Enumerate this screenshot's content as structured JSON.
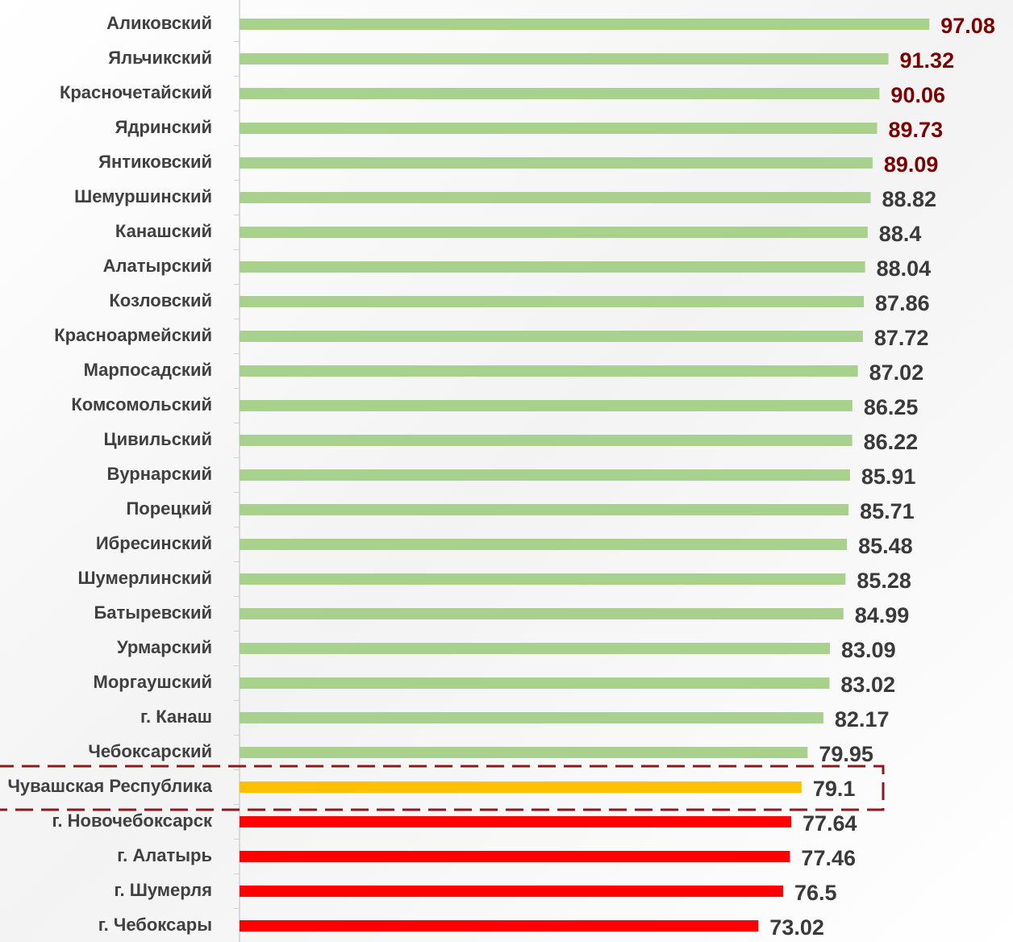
{
  "chart_data": {
    "type": "bar",
    "orientation": "horizontal",
    "categories": [
      "Аликовский",
      "Яльчикский",
      "Красночетайский",
      "Ядринский",
      "Янтиковский",
      "Шемуршинский",
      "Канашский",
      "Алатырский",
      "Козловский",
      "Красноармейский",
      "Марпосадский",
      "Комсомольский",
      "Цивильский",
      "Вурнарский",
      "Порецкий",
      "Ибресинский",
      "Шумерлинский",
      "Батыревский",
      "Урмарский",
      "Моргаушский",
      "г. Канаш",
      "Чебоксарский",
      "Чувашская Республика",
      "г. Новочебоксарск",
      "г. Алатырь",
      "г. Шумерля",
      "г. Чебоксары"
    ],
    "values": [
      97.08,
      91.32,
      90.06,
      89.73,
      89.09,
      88.82,
      88.4,
      88.04,
      87.86,
      87.72,
      87.02,
      86.25,
      86.22,
      85.91,
      85.71,
      85.48,
      85.28,
      84.99,
      83.09,
      83.02,
      82.17,
      79.95,
      79.1,
      77.64,
      77.46,
      76.5,
      73.02
    ],
    "colors": [
      "#a9d18e",
      "#a9d18e",
      "#a9d18e",
      "#a9d18e",
      "#a9d18e",
      "#a9d18e",
      "#a9d18e",
      "#a9d18e",
      "#a9d18e",
      "#a9d18e",
      "#a9d18e",
      "#a9d18e",
      "#a9d18e",
      "#a9d18e",
      "#a9d18e",
      "#a9d18e",
      "#a9d18e",
      "#a9d18e",
      "#a9d18e",
      "#a9d18e",
      "#a9d18e",
      "#a9d18e",
      "#ffc000",
      "#ff0000",
      "#ff0000",
      "#ff0000",
      "#ff0000"
    ],
    "label_colors": [
      "#7b0000",
      "#7b0000",
      "#7b0000",
      "#7b0000",
      "#7b0000",
      "#3a3a3a",
      "#3a3a3a",
      "#3a3a3a",
      "#3a3a3a",
      "#3a3a3a",
      "#3a3a3a",
      "#3a3a3a",
      "#3a3a3a",
      "#3a3a3a",
      "#3a3a3a",
      "#3a3a3a",
      "#3a3a3a",
      "#3a3a3a",
      "#3a3a3a",
      "#3a3a3a",
      "#3a3a3a",
      "#3a3a3a",
      "#3a3a3a",
      "#3a3a3a",
      "#3a3a3a",
      "#3a3a3a",
      "#3a3a3a"
    ],
    "xlim": [
      0,
      100
    ]
  }
}
